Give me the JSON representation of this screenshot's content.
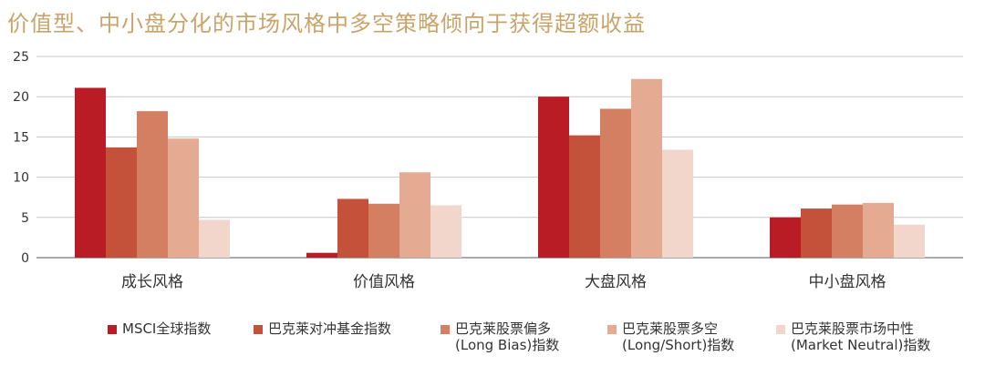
{
  "chart_data": {
    "type": "bar",
    "title": "价值型、中小盘分化的市场风格中多空策略倾向于获得超额收益",
    "categories": [
      "成长风格",
      "价值风格",
      "大盘风格",
      "中小盘风格"
    ],
    "yticks": [
      0,
      5,
      10,
      15,
      20,
      25
    ],
    "ylim": [
      0,
      25
    ],
    "grid": true,
    "legend_position": "bottom",
    "series": [
      {
        "name": "MSCI全球指数",
        "color": "#b91c24",
        "values": [
          21.1,
          0.6,
          20.0,
          5.0
        ]
      },
      {
        "name": "巴克莱对冲基金指数",
        "color": "#c45139",
        "values": [
          13.7,
          7.3,
          15.2,
          6.1
        ]
      },
      {
        "name": "巴克莱股票偏多\n(Long Bias)指数",
        "color": "#d47f62",
        "values": [
          18.2,
          6.7,
          18.5,
          6.6
        ]
      },
      {
        "name": "巴克莱股票多空\n(Long/Short)指数",
        "color": "#e4aa92",
        "values": [
          14.8,
          10.6,
          22.2,
          6.8
        ]
      },
      {
        "name": "巴克莱股票市场中性\n(Market Neutral)指数",
        "color": "#f2d6cb",
        "values": [
          4.7,
          6.5,
          13.4,
          4.1
        ]
      }
    ]
  }
}
